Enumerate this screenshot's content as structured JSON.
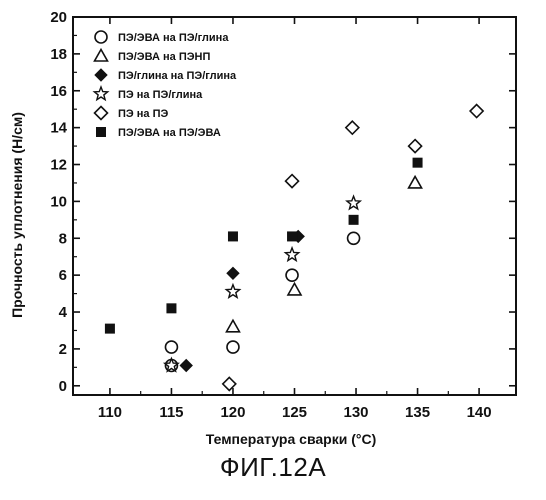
{
  "figure_caption": "ФИГ.12A",
  "chart_data": {
    "type": "scatter",
    "title": "",
    "xlabel": "Температура сварки (°C)",
    "ylabel": "Прочность уплотнения (Н/см)",
    "xlim": [
      107,
      143
    ],
    "ylim": [
      -0.5,
      20
    ],
    "xticks": [
      110,
      115,
      120,
      125,
      130,
      135,
      140
    ],
    "yticks": [
      0,
      2,
      4,
      6,
      8,
      10,
      12,
      14,
      16,
      18,
      20
    ],
    "grid": false,
    "legend_placement": "top-left",
    "series": [
      {
        "name": "ПЭ/ЭВА на ПЭ/глина",
        "marker": "circle-open",
        "points": [
          [
            115,
            2.1
          ],
          [
            115,
            1.1
          ],
          [
            120,
            2.1
          ],
          [
            124.8,
            6.0
          ],
          [
            129.8,
            8.0
          ]
        ]
      },
      {
        "name": "ПЭ/ЭВА на ПЭНП",
        "marker": "triangle-open",
        "points": [
          [
            120,
            3.2
          ],
          [
            125,
            5.2
          ],
          [
            134.8,
            11.0
          ]
        ]
      },
      {
        "name": "ПЭ/глина на ПЭ/глина",
        "marker": "diamond-filled",
        "points": [
          [
            116.2,
            1.1
          ],
          [
            120,
            6.1
          ],
          [
            125.3,
            8.1
          ]
        ]
      },
      {
        "name": "ПЭ на ПЭ/глина",
        "marker": "star-open",
        "points": [
          [
            115,
            1.1
          ],
          [
            120,
            5.1
          ],
          [
            124.8,
            7.1
          ],
          [
            129.8,
            9.9
          ]
        ]
      },
      {
        "name": "ПЭ на ПЭ",
        "marker": "diamond-open",
        "points": [
          [
            119.7,
            0.1
          ],
          [
            124.8,
            11.1
          ],
          [
            129.7,
            14.0
          ],
          [
            134.8,
            13.0
          ],
          [
            139.8,
            14.9
          ]
        ]
      },
      {
        "name": "ПЭ/ЭВА на ПЭ/ЭВА",
        "marker": "square-filled",
        "points": [
          [
            110,
            3.1
          ],
          [
            115,
            4.2
          ],
          [
            120,
            8.1
          ],
          [
            124.8,
            8.1
          ],
          [
            129.8,
            9.0
          ],
          [
            135,
            12.1
          ]
        ]
      }
    ]
  }
}
